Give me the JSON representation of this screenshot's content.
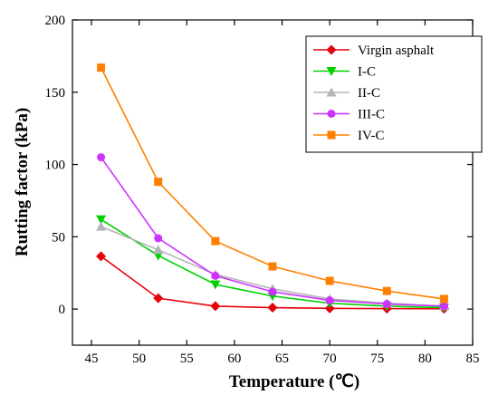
{
  "chart_data": {
    "type": "line",
    "xlabel": "Temperature (℃)",
    "ylabel": "Rutting factor (kPa)",
    "xlim": [
      43,
      85
    ],
    "ylim": [
      -25,
      200
    ],
    "xticks": [
      45,
      50,
      55,
      60,
      65,
      70,
      75,
      80,
      85
    ],
    "yticks": [
      0,
      50,
      100,
      150,
      200
    ],
    "grid": false,
    "legend_position": "top-right",
    "x": [
      46,
      52,
      58,
      64,
      70,
      76,
      82
    ],
    "series": [
      {
        "name": "Virgin asphalt",
        "color": "#e8000b",
        "marker": "diamond",
        "values": [
          36.5,
          7.5,
          2,
          1,
          0.5,
          0.3,
          0.2
        ]
      },
      {
        "name": "I-C",
        "color": "#00d000",
        "marker": "triangle-down",
        "values": [
          62,
          37,
          17,
          9,
          4,
          2,
          1
        ]
      },
      {
        "name": "II-C",
        "color": "#b4b4b4",
        "marker": "triangle-up",
        "values": [
          57,
          41,
          24,
          14,
          7,
          4,
          2
        ]
      },
      {
        "name": "III-C",
        "color": "#cc33ff",
        "marker": "circle",
        "values": [
          105,
          49,
          23,
          12,
          6,
          3.5,
          2
        ]
      },
      {
        "name": "IV-C",
        "color": "#ff8000",
        "marker": "square",
        "values": [
          167,
          88,
          47,
          29.5,
          19.5,
          12.5,
          7
        ]
      }
    ]
  }
}
